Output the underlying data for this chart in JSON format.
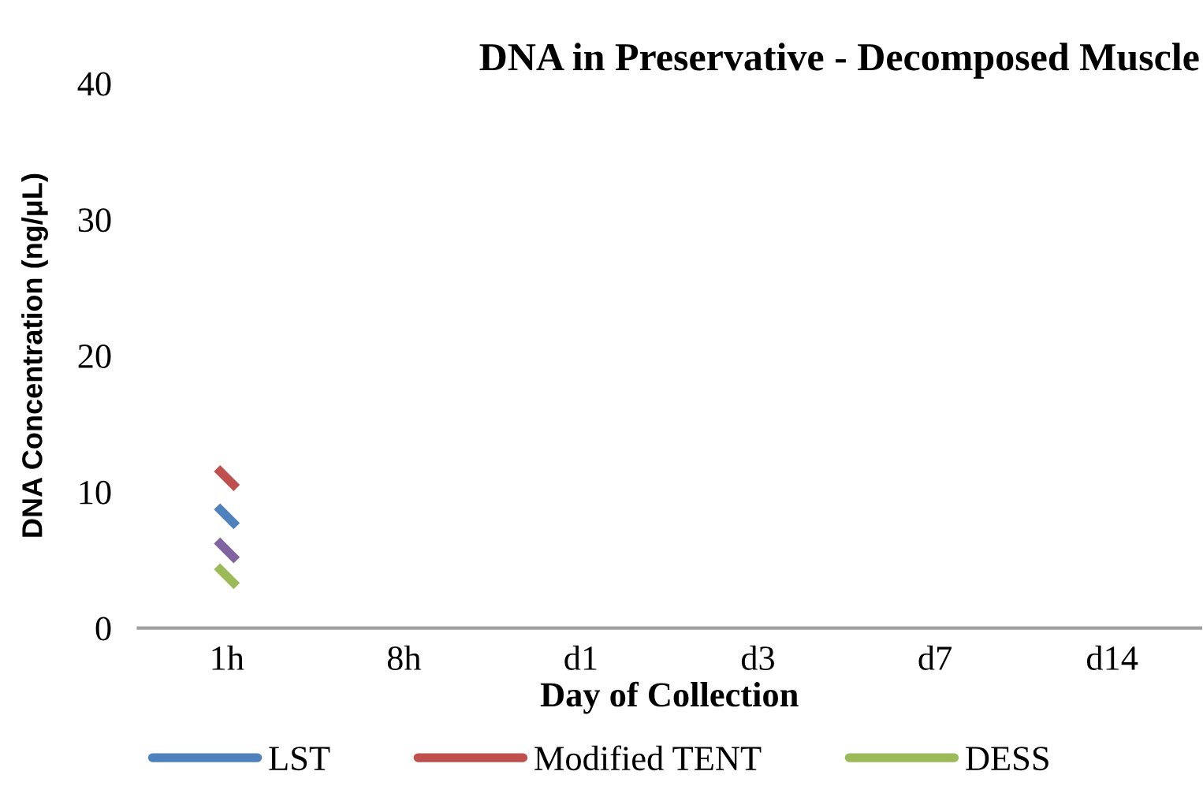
{
  "chart_data": {
    "type": "line",
    "title": "DNA in Preservative - Decomposed Muscle",
    "xlabel": "Day of Collection",
    "ylabel": "DNA Concentration (ng/μL)",
    "categories": [
      "1h",
      "8h",
      "d1",
      "d3",
      "d7",
      "d14"
    ],
    "series": [
      {
        "name": "LST",
        "color": "#4f81bd",
        "values": [
          8.2,
          null,
          null,
          null,
          null,
          null
        ]
      },
      {
        "name": "Modified TENT",
        "color": "#c0504d",
        "values": [
          11.0,
          null,
          null,
          null,
          null,
          null
        ]
      },
      {
        "name": "DESS",
        "color": "#9bbb59",
        "values": [
          3.8,
          null,
          null,
          null,
          null,
          null
        ]
      },
      {
        "color": "#8064a2",
        "values": [
          5.7,
          null,
          null,
          null,
          null,
          null
        ]
      }
    ],
    "ylim": [
      0,
      40
    ],
    "yticks": [
      0,
      10,
      20,
      30,
      40
    ],
    "grid": false,
    "marker": "cross",
    "legend": "bottom"
  }
}
